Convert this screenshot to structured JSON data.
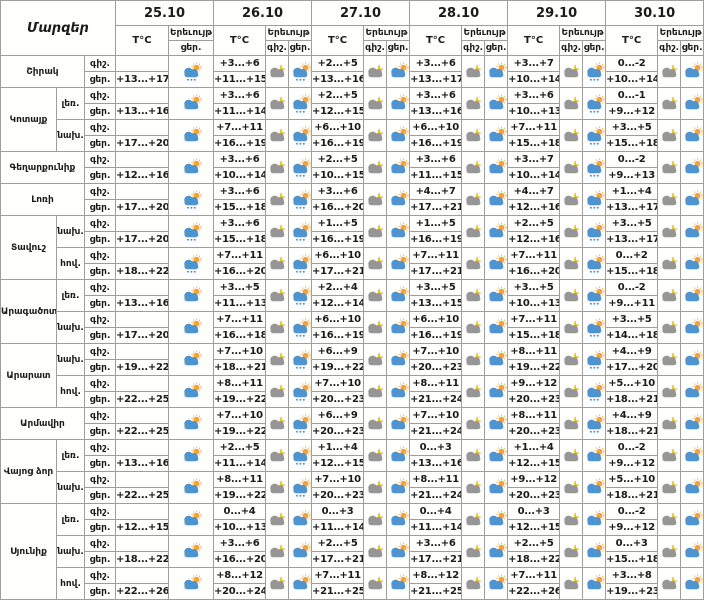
{
  "header": {
    "regions_label": "Մարզեր",
    "temp_label": "T°C",
    "phenomenon_label": "Երեւույթ",
    "night_label": "գիշ.",
    "day_label": "ցեր.",
    "dates": [
      "25.10",
      "26.10",
      "27.10",
      "28.10",
      "29.10",
      "30.10"
    ]
  },
  "colors": {
    "border": "#9e9e9e",
    "text": "#1b1b1b",
    "cloud_blue": "#4f94d0",
    "cloud_gray": "#969696",
    "sun": "#f2a33c",
    "moon": "#e8c43f",
    "rain": "#5b8fc9",
    "background": "#ffffff"
  },
  "icon_names": {
    "night": "night-cloud-moon-icon",
    "sun": "sun-cloud-icon",
    "rain": "sun-cloud-rain-icon"
  },
  "rows": [
    {
      "region": "Շիրակ",
      "span": 1,
      "zone": null,
      "cells": [
        {
          "n": "",
          "d": "+13...+17",
          "ni": null,
          "di": "rain"
        },
        {
          "n": "+3...+6",
          "d": "+11...+15",
          "ni": "night",
          "di": "rain"
        },
        {
          "n": "+2...+5",
          "d": "+13...+16",
          "ni": "night",
          "di": "sun"
        },
        {
          "n": "+3...+6",
          "d": "+13...+17",
          "ni": "night",
          "di": "sun"
        },
        {
          "n": "+3...+7",
          "d": "+10...+14",
          "ni": "night",
          "di": "rain"
        },
        {
          "n": "0...-2",
          "d": "+10...+14",
          "ni": "night",
          "di": "sun"
        }
      ]
    },
    {
      "region": "Կոտայք",
      "span": 2,
      "zone": "լեռ.",
      "cells": [
        {
          "n": "",
          "d": "+13...+16",
          "ni": null,
          "di": "sun"
        },
        {
          "n": "+3...+6",
          "d": "+11...+14",
          "ni": "night",
          "di": "rain"
        },
        {
          "n": "+2...+5",
          "d": "+12...+15",
          "ni": "night",
          "di": "sun"
        },
        {
          "n": "+3...+6",
          "d": "+13...+16",
          "ni": "night",
          "di": "sun"
        },
        {
          "n": "+3...+6",
          "d": "+10...+13",
          "ni": "night",
          "di": "rain"
        },
        {
          "n": "0...-1",
          "d": "+9...+12",
          "ni": "night",
          "di": "sun"
        }
      ]
    },
    {
      "region": null,
      "span": 0,
      "zone": "նախ.",
      "cells": [
        {
          "n": "",
          "d": "+17...+20",
          "ni": null,
          "di": "sun"
        },
        {
          "n": "+7...+11",
          "d": "+16...+19",
          "ni": "night",
          "di": "rain"
        },
        {
          "n": "+6...+10",
          "d": "+16...+19",
          "ni": "night",
          "di": "sun"
        },
        {
          "n": "+6...+10",
          "d": "+16...+19",
          "ni": "night",
          "di": "sun"
        },
        {
          "n": "+7...+11",
          "d": "+15...+18",
          "ni": "night",
          "di": "rain"
        },
        {
          "n": "+3...+5",
          "d": "+15...+18",
          "ni": "night",
          "di": "sun"
        }
      ]
    },
    {
      "region": "Գեղարքունիք",
      "span": 1,
      "zone": null,
      "cells": [
        {
          "n": "",
          "d": "+12...+16",
          "ni": null,
          "di": "sun"
        },
        {
          "n": "+3...+6",
          "d": "+10...+14",
          "ni": "night",
          "di": "rain"
        },
        {
          "n": "+2...+5",
          "d": "+10...+15",
          "ni": "night",
          "di": "sun"
        },
        {
          "n": "+3...+6",
          "d": "+11...+15",
          "ni": "night",
          "di": "sun"
        },
        {
          "n": "+3...+7",
          "d": "+10...+14",
          "ni": "night",
          "di": "rain"
        },
        {
          "n": "0...-2",
          "d": "+9...+13",
          "ni": "night",
          "di": "sun"
        }
      ]
    },
    {
      "region": "Լոռի",
      "span": 1,
      "zone": null,
      "cells": [
        {
          "n": "",
          "d": "+17...+20",
          "ni": null,
          "di": "rain"
        },
        {
          "n": "+3...+6",
          "d": "+15...+18",
          "ni": "night",
          "di": "rain"
        },
        {
          "n": "+3...+6",
          "d": "+16...+20",
          "ni": "night",
          "di": "sun"
        },
        {
          "n": "+4...+7",
          "d": "+17...+21",
          "ni": "night",
          "di": "sun"
        },
        {
          "n": "+4...+7",
          "d": "+12...+16",
          "ni": "night",
          "di": "rain"
        },
        {
          "n": "+1...+4",
          "d": "+13...+17",
          "ni": "night",
          "di": "sun"
        }
      ]
    },
    {
      "region": "Տավուշ",
      "span": 2,
      "zone": "նախ.",
      "cells": [
        {
          "n": "",
          "d": "+17...+20",
          "ni": null,
          "di": "rain"
        },
        {
          "n": "+3...+6",
          "d": "+15...+18",
          "ni": "night",
          "di": "rain"
        },
        {
          "n": "+1...+5",
          "d": "+16...+19",
          "ni": "night",
          "di": "sun"
        },
        {
          "n": "+1...+5",
          "d": "+16...+19",
          "ni": "night",
          "di": "sun"
        },
        {
          "n": "+2...+5",
          "d": "+12...+16",
          "ni": "night",
          "di": "rain"
        },
        {
          "n": "+3...+5",
          "d": "+13...+17",
          "ni": "night",
          "di": "sun"
        }
      ]
    },
    {
      "region": null,
      "span": 0,
      "zone": "հով.",
      "cells": [
        {
          "n": "",
          "d": "+18...+22",
          "ni": null,
          "di": "rain"
        },
        {
          "n": "+7...+11",
          "d": "+16...+20",
          "ni": "night",
          "di": "rain"
        },
        {
          "n": "+6...+10",
          "d": "+17...+21",
          "ni": "night",
          "di": "sun"
        },
        {
          "n": "+7...+11",
          "d": "+17...+21",
          "ni": "night",
          "di": "sun"
        },
        {
          "n": "+7...+11",
          "d": "+16...+20",
          "ni": "night",
          "di": "rain"
        },
        {
          "n": "0...+2",
          "d": "+15...+18",
          "ni": "night",
          "di": "sun"
        }
      ]
    },
    {
      "region": "Արագածոտն",
      "span": 2,
      "zone": "լեռ.",
      "cells": [
        {
          "n": "",
          "d": "+13...+16",
          "ni": null,
          "di": "sun"
        },
        {
          "n": "+3...+5",
          "d": "+11...+13",
          "ni": "night",
          "di": "rain"
        },
        {
          "n": "+2...+4",
          "d": "+12...+14",
          "ni": "night",
          "di": "sun"
        },
        {
          "n": "+3...+5",
          "d": "+13...+15",
          "ni": "night",
          "di": "sun"
        },
        {
          "n": "+3...+5",
          "d": "+10...+13",
          "ni": "night",
          "di": "rain"
        },
        {
          "n": "0...-2",
          "d": "+9...+11",
          "ni": "night",
          "di": "sun"
        }
      ]
    },
    {
      "region": null,
      "span": 0,
      "zone": "նախ.",
      "cells": [
        {
          "n": "",
          "d": "+17...+20",
          "ni": null,
          "di": "sun"
        },
        {
          "n": "+7...+11",
          "d": "+16...+18",
          "ni": "night",
          "di": "rain"
        },
        {
          "n": "+6...+10",
          "d": "+16...+19",
          "ni": "night",
          "di": "sun"
        },
        {
          "n": "+6...+10",
          "d": "+16...+19",
          "ni": "night",
          "di": "sun"
        },
        {
          "n": "+7...+11",
          "d": "+15...+18",
          "ni": "night",
          "di": "rain"
        },
        {
          "n": "+3...+5",
          "d": "+14...+18",
          "ni": "night",
          "di": "sun"
        }
      ]
    },
    {
      "region": "Արարատ",
      "span": 2,
      "zone": "նախ.",
      "cells": [
        {
          "n": "",
          "d": "+19...+22",
          "ni": null,
          "di": "sun"
        },
        {
          "n": "+7...+10",
          "d": "+18...+21",
          "ni": "night",
          "di": "rain"
        },
        {
          "n": "+6...+9",
          "d": "+19...+22",
          "ni": "night",
          "di": "sun"
        },
        {
          "n": "+7...+10",
          "d": "+20...+23",
          "ni": "night",
          "di": "sun"
        },
        {
          "n": "+8...+11",
          "d": "+19...+22",
          "ni": "night",
          "di": "rain"
        },
        {
          "n": "+4...+9",
          "d": "+17...+20",
          "ni": "night",
          "di": "sun"
        }
      ]
    },
    {
      "region": null,
      "span": 0,
      "zone": "հով.",
      "cells": [
        {
          "n": "",
          "d": "+22...+25",
          "ni": null,
          "di": "sun"
        },
        {
          "n": "+8...+11",
          "d": "+19...+22",
          "ni": "night",
          "di": "rain"
        },
        {
          "n": "+7...+10",
          "d": "+20...+23",
          "ni": "night",
          "di": "sun"
        },
        {
          "n": "+8...+11",
          "d": "+21...+24",
          "ni": "night",
          "di": "sun"
        },
        {
          "n": "+9...+12",
          "d": "+20...+23",
          "ni": "night",
          "di": "rain"
        },
        {
          "n": "+5...+10",
          "d": "+18...+21",
          "ni": "night",
          "di": "sun"
        }
      ]
    },
    {
      "region": "Արմավիր",
      "span": 1,
      "zone": null,
      "cells": [
        {
          "n": "",
          "d": "+22...+25",
          "ni": null,
          "di": "sun"
        },
        {
          "n": "+7...+10",
          "d": "+19...+22",
          "ni": "night",
          "di": "rain"
        },
        {
          "n": "+6...+9",
          "d": "+20...+23",
          "ni": "night",
          "di": "sun"
        },
        {
          "n": "+7...+10",
          "d": "+21...+24",
          "ni": "night",
          "di": "sun"
        },
        {
          "n": "+8...+11",
          "d": "+20...+23",
          "ni": "night",
          "di": "rain"
        },
        {
          "n": "+4...+9",
          "d": "+18...+21",
          "ni": "night",
          "di": "sun"
        }
      ]
    },
    {
      "region": "Վայոց ձոր",
      "span": 2,
      "zone": "լեռ.",
      "cells": [
        {
          "n": "",
          "d": "+13...+16",
          "ni": null,
          "di": "sun"
        },
        {
          "n": "+2...+5",
          "d": "+11...+14",
          "ni": "night",
          "di": "rain"
        },
        {
          "n": "+1...+4",
          "d": "+12...+15",
          "ni": "night",
          "di": "sun"
        },
        {
          "n": "0...+3",
          "d": "+13...+16",
          "ni": "night",
          "di": "sun"
        },
        {
          "n": "+1...+4",
          "d": "+12...+15",
          "ni": "night",
          "di": "sun"
        },
        {
          "n": "0...-2",
          "d": "+9...+12",
          "ni": "night",
          "di": "sun"
        }
      ]
    },
    {
      "region": null,
      "span": 0,
      "zone": "նախ.",
      "cells": [
        {
          "n": "",
          "d": "+22...+25",
          "ni": null,
          "di": "sun"
        },
        {
          "n": "+8...+11",
          "d": "+19...+22",
          "ni": "night",
          "di": "rain"
        },
        {
          "n": "+7...+10",
          "d": "+20...+23",
          "ni": "night",
          "di": "sun"
        },
        {
          "n": "+8...+11",
          "d": "+21...+24",
          "ni": "night",
          "di": "sun"
        },
        {
          "n": "+9...+12",
          "d": "+20...+23",
          "ni": "night",
          "di": "sun"
        },
        {
          "n": "+5...+10",
          "d": "+18...+21",
          "ni": "night",
          "di": "sun"
        }
      ]
    },
    {
      "region": "Սյունիք",
      "span": 3,
      "zone": "լեռ.",
      "cells": [
        {
          "n": "",
          "d": "+12...+15",
          "ni": null,
          "di": "sun"
        },
        {
          "n": "0...+4",
          "d": "+10...+13",
          "ni": "night",
          "di": "sun"
        },
        {
          "n": "0...+3",
          "d": "+11...+14",
          "ni": "night",
          "di": "sun"
        },
        {
          "n": "0...+4",
          "d": "+11...+14",
          "ni": "night",
          "di": "sun"
        },
        {
          "n": "0...+3",
          "d": "+12...+15",
          "ni": "night",
          "di": "sun"
        },
        {
          "n": "0...-2",
          "d": "+9...+12",
          "ni": "night",
          "di": "sun"
        }
      ]
    },
    {
      "region": null,
      "span": 0,
      "zone": "նախ.",
      "cells": [
        {
          "n": "",
          "d": "+18...+22",
          "ni": null,
          "di": "sun"
        },
        {
          "n": "+3...+6",
          "d": "+16...+20",
          "ni": "night",
          "di": "sun"
        },
        {
          "n": "+2...+5",
          "d": "+17...+21",
          "ni": "night",
          "di": "sun"
        },
        {
          "n": "+3...+6",
          "d": "+17...+21",
          "ni": "night",
          "di": "sun"
        },
        {
          "n": "+2...+5",
          "d": "+18...+22",
          "ni": "night",
          "di": "sun"
        },
        {
          "n": "0...+3",
          "d": "+15...+18",
          "ni": "night",
          "di": "sun"
        }
      ]
    },
    {
      "region": null,
      "span": 0,
      "zone": "հով.",
      "cells": [
        {
          "n": "",
          "d": "+22...+26",
          "ni": null,
          "di": "sun"
        },
        {
          "n": "+8...+12",
          "d": "+20...+24",
          "ni": "night",
          "di": "sun"
        },
        {
          "n": "+7...+11",
          "d": "+21...+25",
          "ni": "night",
          "di": "sun"
        },
        {
          "n": "+8...+12",
          "d": "+21...+25",
          "ni": "night",
          "di": "sun"
        },
        {
          "n": "+7...+11",
          "d": "+22...+26",
          "ni": "night",
          "di": "sun"
        },
        {
          "n": "+3...+8",
          "d": "+19...+23",
          "ni": "night",
          "di": "sun"
        }
      ]
    }
  ]
}
